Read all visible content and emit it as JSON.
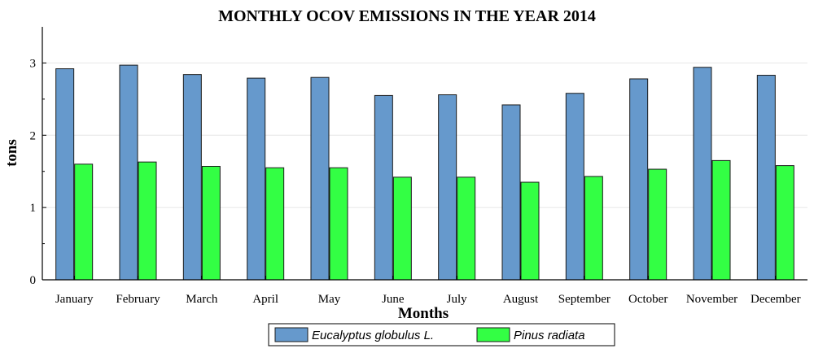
{
  "chart_data": {
    "type": "bar",
    "title": "MONTHLY OCOV EMISSIONS IN THE YEAR 2014",
    "xlabel": "Months",
    "ylabel": "tons",
    "ylim": [
      0,
      3.5
    ],
    "yticks": [
      0,
      1,
      2,
      3
    ],
    "grid": true,
    "legend_position": "bottom",
    "categories": [
      "January",
      "February",
      "March",
      "April",
      "May",
      "June",
      "July",
      "August",
      "September",
      "October",
      "November",
      "December"
    ],
    "series": [
      {
        "name": "Eucalyptus globulus L.",
        "color": "#6699cc",
        "values": [
          2.92,
          2.97,
          2.84,
          2.79,
          2.8,
          2.55,
          2.56,
          2.42,
          2.58,
          2.78,
          2.94,
          2.83
        ]
      },
      {
        "name": "Pinus radiata",
        "color": "#33ff44",
        "values": [
          1.6,
          1.63,
          1.57,
          1.55,
          1.55,
          1.42,
          1.42,
          1.35,
          1.43,
          1.53,
          1.65,
          1.58
        ]
      }
    ]
  }
}
